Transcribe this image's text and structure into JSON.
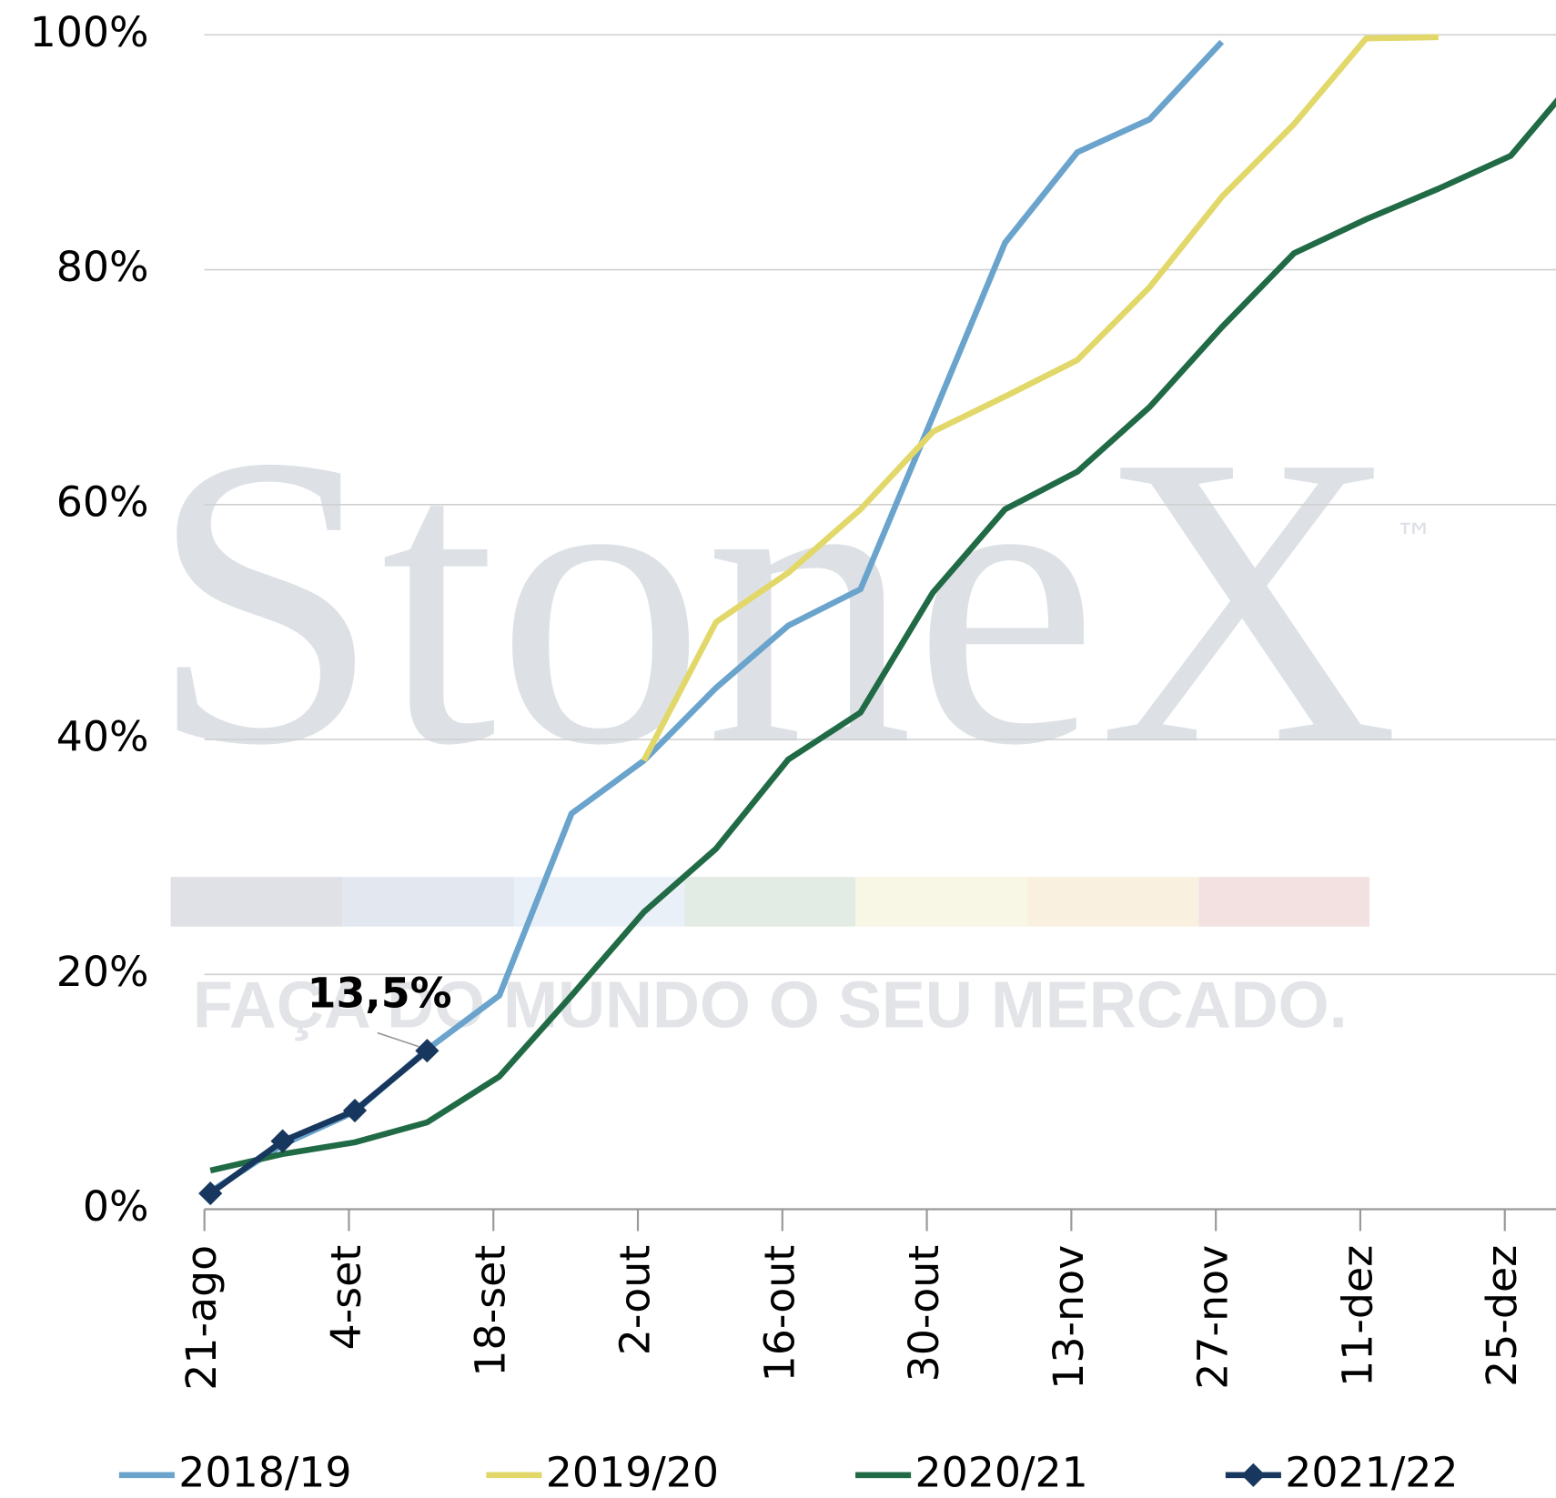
{
  "chart_data": {
    "type": "line",
    "watermark": "StoneX",
    "watermark_mark": "™",
    "watermark_tagline": "FAÇA DO MUNDO O SEU MERCADO.",
    "categories": [
      "21-ago",
      null,
      "4-set",
      null,
      "18-set",
      null,
      "2-out",
      null,
      "16-out",
      null,
      "30-out",
      null,
      "13-nov",
      null,
      "27-nov",
      null,
      "11-dez",
      null,
      "25-dez",
      null
    ],
    "series": [
      {
        "name": "2018/19",
        "color": "#6aa3cc",
        "values": [
          1.5,
          5.5,
          8.3,
          13.6,
          18.2,
          33.7,
          38.2,
          44.4,
          49.7,
          52.8,
          67.5,
          82.3,
          90.0,
          92.8,
          99.4,
          null,
          null,
          null,
          null,
          null
        ]
      },
      {
        "name": "2019/20",
        "color": "#e2d86a",
        "values": [
          null,
          null,
          null,
          null,
          null,
          null,
          38.2,
          50.0,
          54.2,
          59.6,
          66.2,
          69.2,
          72.3,
          78.5,
          86.2,
          92.4,
          99.7,
          99.8,
          null,
          null
        ]
      },
      {
        "name": "2020/21",
        "color": "#206a45",
        "values": [
          3.3,
          4.7,
          5.7,
          7.4,
          11.3,
          18.2,
          25.3,
          30.7,
          38.3,
          42.3,
          52.5,
          59.6,
          62.8,
          68.3,
          75.1,
          81.4,
          84.3,
          86.9,
          89.7,
          97.0
        ]
      },
      {
        "name": "2021/22",
        "color": "#17375e",
        "marker": "diamond",
        "values": [
          1.35,
          5.8,
          8.4,
          13.5,
          null,
          null,
          null,
          null,
          null,
          null,
          null,
          null,
          null,
          null,
          null,
          null,
          null,
          null,
          null,
          null
        ],
        "value_labels": [
          null,
          null,
          null,
          "13,5%",
          null,
          null,
          null,
          null,
          null,
          null,
          null,
          null,
          null,
          null,
          null,
          null,
          null,
          null,
          null,
          null
        ]
      }
    ],
    "ylim": [
      0,
      100
    ],
    "yticks": [
      {
        "value": 0,
        "label": "0%"
      },
      {
        "value": 20,
        "label": "20%"
      },
      {
        "value": 40,
        "label": "40%"
      },
      {
        "value": 60,
        "label": "60%"
      },
      {
        "value": 80,
        "label": "80%"
      },
      {
        "value": 100,
        "label": "100%"
      }
    ],
    "grid": true,
    "legend": "bottom"
  }
}
